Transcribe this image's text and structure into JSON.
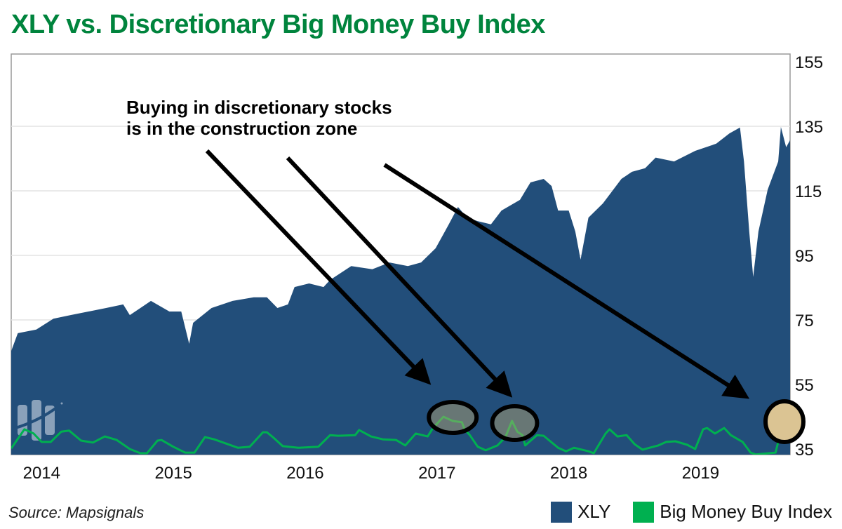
{
  "title": "XLY vs. Discretionary Big Money Buy Index",
  "source": "Source: Mapsignals",
  "colors": {
    "xly": "#224e7a",
    "index": "#00b050",
    "title": "#00843d",
    "highlight": "#f3d9b1"
  },
  "chart_data": {
    "type": "area",
    "title": "XLY vs. Discretionary Big Money Buy Index",
    "xlabel": "",
    "ylabel": "",
    "xlim": [
      2013.78,
      2019.69
    ],
    "ylim": [
      33,
      155
    ],
    "y_ticks": [
      35,
      55,
      75,
      95,
      115,
      135,
      155
    ],
    "x_ticks": [
      2014,
      2015,
      2016,
      2017,
      2018,
      2019
    ],
    "x_tick_labels": [
      "2014",
      "2015",
      "2016",
      "2017",
      "2018",
      "2019"
    ],
    "y_axis_side": "right",
    "grid": true,
    "legend": {
      "placement": "bottom-right",
      "entries": [
        "XLY",
        "Big Money Buy Index"
      ]
    },
    "annotation": {
      "lines": [
        "Buying in discretionary stocks",
        "is in the construction zone"
      ]
    },
    "highlights": [
      2017.13,
      2017.6,
      2019.67
    ],
    "series": [
      {
        "name": "XLY",
        "type": "area",
        "x": [
          2013.78,
          2013.83,
          2013.97,
          2014.1,
          2014.23,
          2014.5,
          2014.63,
          2014.68,
          2014.76,
          2014.84,
          2014.98,
          2015.07,
          2015.13,
          2015.16,
          2015.3,
          2015.46,
          2015.62,
          2015.72,
          2015.8,
          2015.88,
          2015.93,
          2016.04,
          2016.15,
          2016.2,
          2016.36,
          2016.52,
          2016.65,
          2016.79,
          2016.89,
          2017.0,
          2017.1,
          2017.17,
          2017.24,
          2017.32,
          2017.42,
          2017.5,
          2017.64,
          2017.72,
          2017.82,
          2017.88,
          2017.93,
          2018.01,
          2018.06,
          2018.1,
          2018.16,
          2018.27,
          2018.41,
          2018.49,
          2018.59,
          2018.67,
          2018.81,
          2018.97,
          2019.13,
          2019.23,
          2019.31,
          2019.34,
          2019.38,
          2019.41,
          2019.45,
          2019.52,
          2019.6,
          2019.62,
          2019.66,
          2019.69
        ],
        "y": [
          65.4,
          70.9,
          72,
          75.4,
          76.5,
          78.7,
          79.8,
          76.5,
          78.7,
          80.9,
          77.6,
          77.6,
          67.6,
          74.1,
          78.7,
          80.9,
          82,
          82,
          78.7,
          79.8,
          85.2,
          86.3,
          85.2,
          87.4,
          91.7,
          90.7,
          92.8,
          91.7,
          92.8,
          97.2,
          104.6,
          110,
          106.7,
          105.6,
          104.6,
          108.9,
          112.2,
          117.6,
          118.7,
          116.5,
          108.9,
          108.9,
          102.4,
          93.7,
          106.7,
          111.1,
          118.7,
          120.9,
          122,
          125.3,
          124.1,
          127.4,
          129.6,
          132.8,
          134.6,
          124.1,
          102.4,
          88.3,
          102.4,
          115.4,
          124.1,
          134.8,
          128.5,
          130.7
        ]
      },
      {
        "name": "Big Money Buy Index",
        "type": "line",
        "x": [
          2013.78,
          2013.88,
          2013.95,
          2014.01,
          2014.08,
          2014.16,
          2014.22,
          2014.31,
          2014.4,
          2014.49,
          2014.58,
          2014.68,
          2014.76,
          2014.81,
          2014.89,
          2014.92,
          2015.01,
          2015.1,
          2015.17,
          2015.25,
          2015.32,
          2015.41,
          2015.5,
          2015.59,
          2015.69,
          2015.72,
          2015.77,
          2015.84,
          2015.96,
          2016.11,
          2016.2,
          2016.26,
          2016.39,
          2016.42,
          2016.51,
          2016.6,
          2016.7,
          2016.77,
          2016.85,
          2016.94,
          2016.98,
          2017.06,
          2017.13,
          2017.2,
          2017.22,
          2017.26,
          2017.32,
          2017.38,
          2017.47,
          2017.53,
          2017.58,
          2017.62,
          2017.66,
          2017.68,
          2017.77,
          2017.82,
          2017.93,
          2017.99,
          2018.05,
          2018.16,
          2018.2,
          2018.29,
          2018.32,
          2018.38,
          2018.45,
          2018.51,
          2018.57,
          2018.69,
          2018.75,
          2018.82,
          2018.91,
          2018.97,
          2019.03,
          2019.06,
          2019.12,
          2019.19,
          2019.24,
          2019.33,
          2019.39,
          2019.43,
          2019.58,
          2019.61,
          2019.64,
          2019.67,
          2019.69
        ],
        "y": [
          35.2,
          41.1,
          39.8,
          37.2,
          37.2,
          40.4,
          40.7,
          37.6,
          37,
          38.9,
          37.8,
          35,
          33.7,
          33.7,
          37.6,
          37.8,
          35.7,
          33.9,
          33.9,
          38.7,
          38,
          36.7,
          35.4,
          35.7,
          40.2,
          40.2,
          38.5,
          35.9,
          35.4,
          35.7,
          39.3,
          39.1,
          39.3,
          40.9,
          38.9,
          38,
          37.8,
          36.1,
          39.8,
          38.9,
          41.5,
          45,
          43.7,
          43.3,
          41.1,
          39.3,
          35.7,
          34.6,
          36.1,
          38.7,
          43.7,
          40.4,
          39.3,
          36.1,
          39.3,
          39.1,
          35.4,
          34.3,
          35.4,
          34.3,
          33.7,
          39.8,
          41.1,
          38.9,
          39.3,
          36.5,
          34.8,
          36.1,
          37.2,
          37.4,
          36.3,
          35,
          41.1,
          41.5,
          39.8,
          41.5,
          39.3,
          37.2,
          33.9,
          33.3,
          33.9,
          38.9,
          45.4,
          45.9,
          44.3
        ]
      }
    ]
  }
}
